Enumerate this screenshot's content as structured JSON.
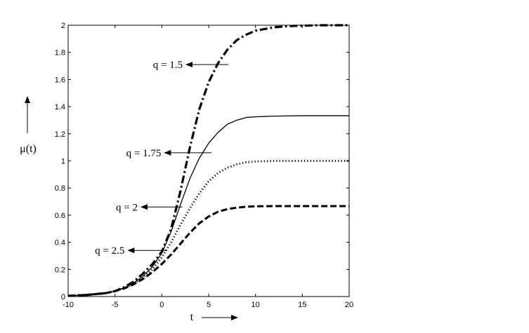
{
  "chart_data": {
    "type": "line",
    "title": "",
    "xlabel": "t",
    "ylabel": "μ(t)",
    "xlim": [
      -10,
      20
    ],
    "ylim": [
      0,
      2
    ],
    "xticks": [
      -10,
      -5,
      0,
      5,
      10,
      15,
      20
    ],
    "yticks": [
      0,
      0.2,
      0.4,
      0.6,
      0.8,
      1,
      1.2,
      1.4,
      1.6,
      1.8,
      2
    ],
    "grid": false,
    "line_color": "#000000",
    "series": [
      {
        "name": "q = 1.5",
        "dash": "dash-dot",
        "points": [
          [
            -10,
            0.005
          ],
          [
            -8,
            0.012
          ],
          [
            -6,
            0.025
          ],
          [
            -5,
            0.04
          ],
          [
            -4,
            0.07
          ],
          [
            -3,
            0.11
          ],
          [
            -2,
            0.17
          ],
          [
            -1,
            0.24
          ],
          [
            0,
            0.33
          ],
          [
            1,
            0.5
          ],
          [
            2,
            0.78
          ],
          [
            3,
            1.1
          ],
          [
            4,
            1.38
          ],
          [
            5,
            1.58
          ],
          [
            6,
            1.72
          ],
          [
            7,
            1.82
          ],
          [
            8,
            1.89
          ],
          [
            9,
            1.93
          ],
          [
            10,
            1.96
          ],
          [
            12,
            1.985
          ],
          [
            14,
            1.995
          ],
          [
            17,
            2.0
          ],
          [
            20,
            2.0
          ]
        ]
      },
      {
        "name": "q = 1.75",
        "dash": "solid",
        "points": [
          [
            -10,
            0.005
          ],
          [
            -8,
            0.012
          ],
          [
            -6,
            0.025
          ],
          [
            -5,
            0.04
          ],
          [
            -4,
            0.065
          ],
          [
            -3,
            0.1
          ],
          [
            -2,
            0.15
          ],
          [
            -1,
            0.22
          ],
          [
            0,
            0.32
          ],
          [
            1,
            0.48
          ],
          [
            2,
            0.68
          ],
          [
            3,
            0.87
          ],
          [
            4,
            1.02
          ],
          [
            5,
            1.13
          ],
          [
            6,
            1.21
          ],
          [
            7,
            1.27
          ],
          [
            8,
            1.3
          ],
          [
            9,
            1.32
          ],
          [
            10,
            1.325
          ],
          [
            12,
            1.33
          ],
          [
            15,
            1.333
          ],
          [
            20,
            1.333
          ]
        ]
      },
      {
        "name": "q = 2",
        "dash": "dotted",
        "points": [
          [
            -10,
            0.005
          ],
          [
            -8,
            0.012
          ],
          [
            -6,
            0.025
          ],
          [
            -5,
            0.04
          ],
          [
            -4,
            0.062
          ],
          [
            -3,
            0.095
          ],
          [
            -2,
            0.14
          ],
          [
            -1,
            0.2
          ],
          [
            0,
            0.29
          ],
          [
            1,
            0.4
          ],
          [
            2,
            0.53
          ],
          [
            3,
            0.65
          ],
          [
            4,
            0.76
          ],
          [
            5,
            0.85
          ],
          [
            6,
            0.91
          ],
          [
            7,
            0.95
          ],
          [
            8,
            0.975
          ],
          [
            9,
            0.99
          ],
          [
            10,
            0.995
          ],
          [
            12,
            1.0
          ],
          [
            15,
            1.0
          ],
          [
            20,
            1.0
          ]
        ]
      },
      {
        "name": "q = 2.5",
        "dash": "dashed",
        "points": [
          [
            -10,
            0.005
          ],
          [
            -8,
            0.012
          ],
          [
            -6,
            0.025
          ],
          [
            -5,
            0.04
          ],
          [
            -4,
            0.06
          ],
          [
            -3,
            0.09
          ],
          [
            -2,
            0.13
          ],
          [
            -1,
            0.18
          ],
          [
            0,
            0.24
          ],
          [
            1,
            0.31
          ],
          [
            2,
            0.39
          ],
          [
            3,
            0.47
          ],
          [
            4,
            0.54
          ],
          [
            5,
            0.59
          ],
          [
            6,
            0.625
          ],
          [
            7,
            0.645
          ],
          [
            8,
            0.655
          ],
          [
            9,
            0.662
          ],
          [
            10,
            0.665
          ],
          [
            12,
            0.667
          ],
          [
            15,
            0.667
          ],
          [
            20,
            0.667
          ]
        ]
      }
    ],
    "annotations": [
      {
        "text": "q = 1.5",
        "from": [
          2.6,
          1.71
        ],
        "to": [
          7.1,
          1.71
        ]
      },
      {
        "text": "q = 1.75",
        "from": [
          0.3,
          1.06
        ],
        "to": [
          5.3,
          1.06
        ]
      },
      {
        "text": "q = 2",
        "from": [
          -2.2,
          0.66
        ],
        "to": [
          2.2,
          0.66
        ]
      },
      {
        "text": "q = 2.5",
        "from": [
          -3.6,
          0.34
        ],
        "to": [
          0.6,
          0.34
        ]
      }
    ]
  }
}
